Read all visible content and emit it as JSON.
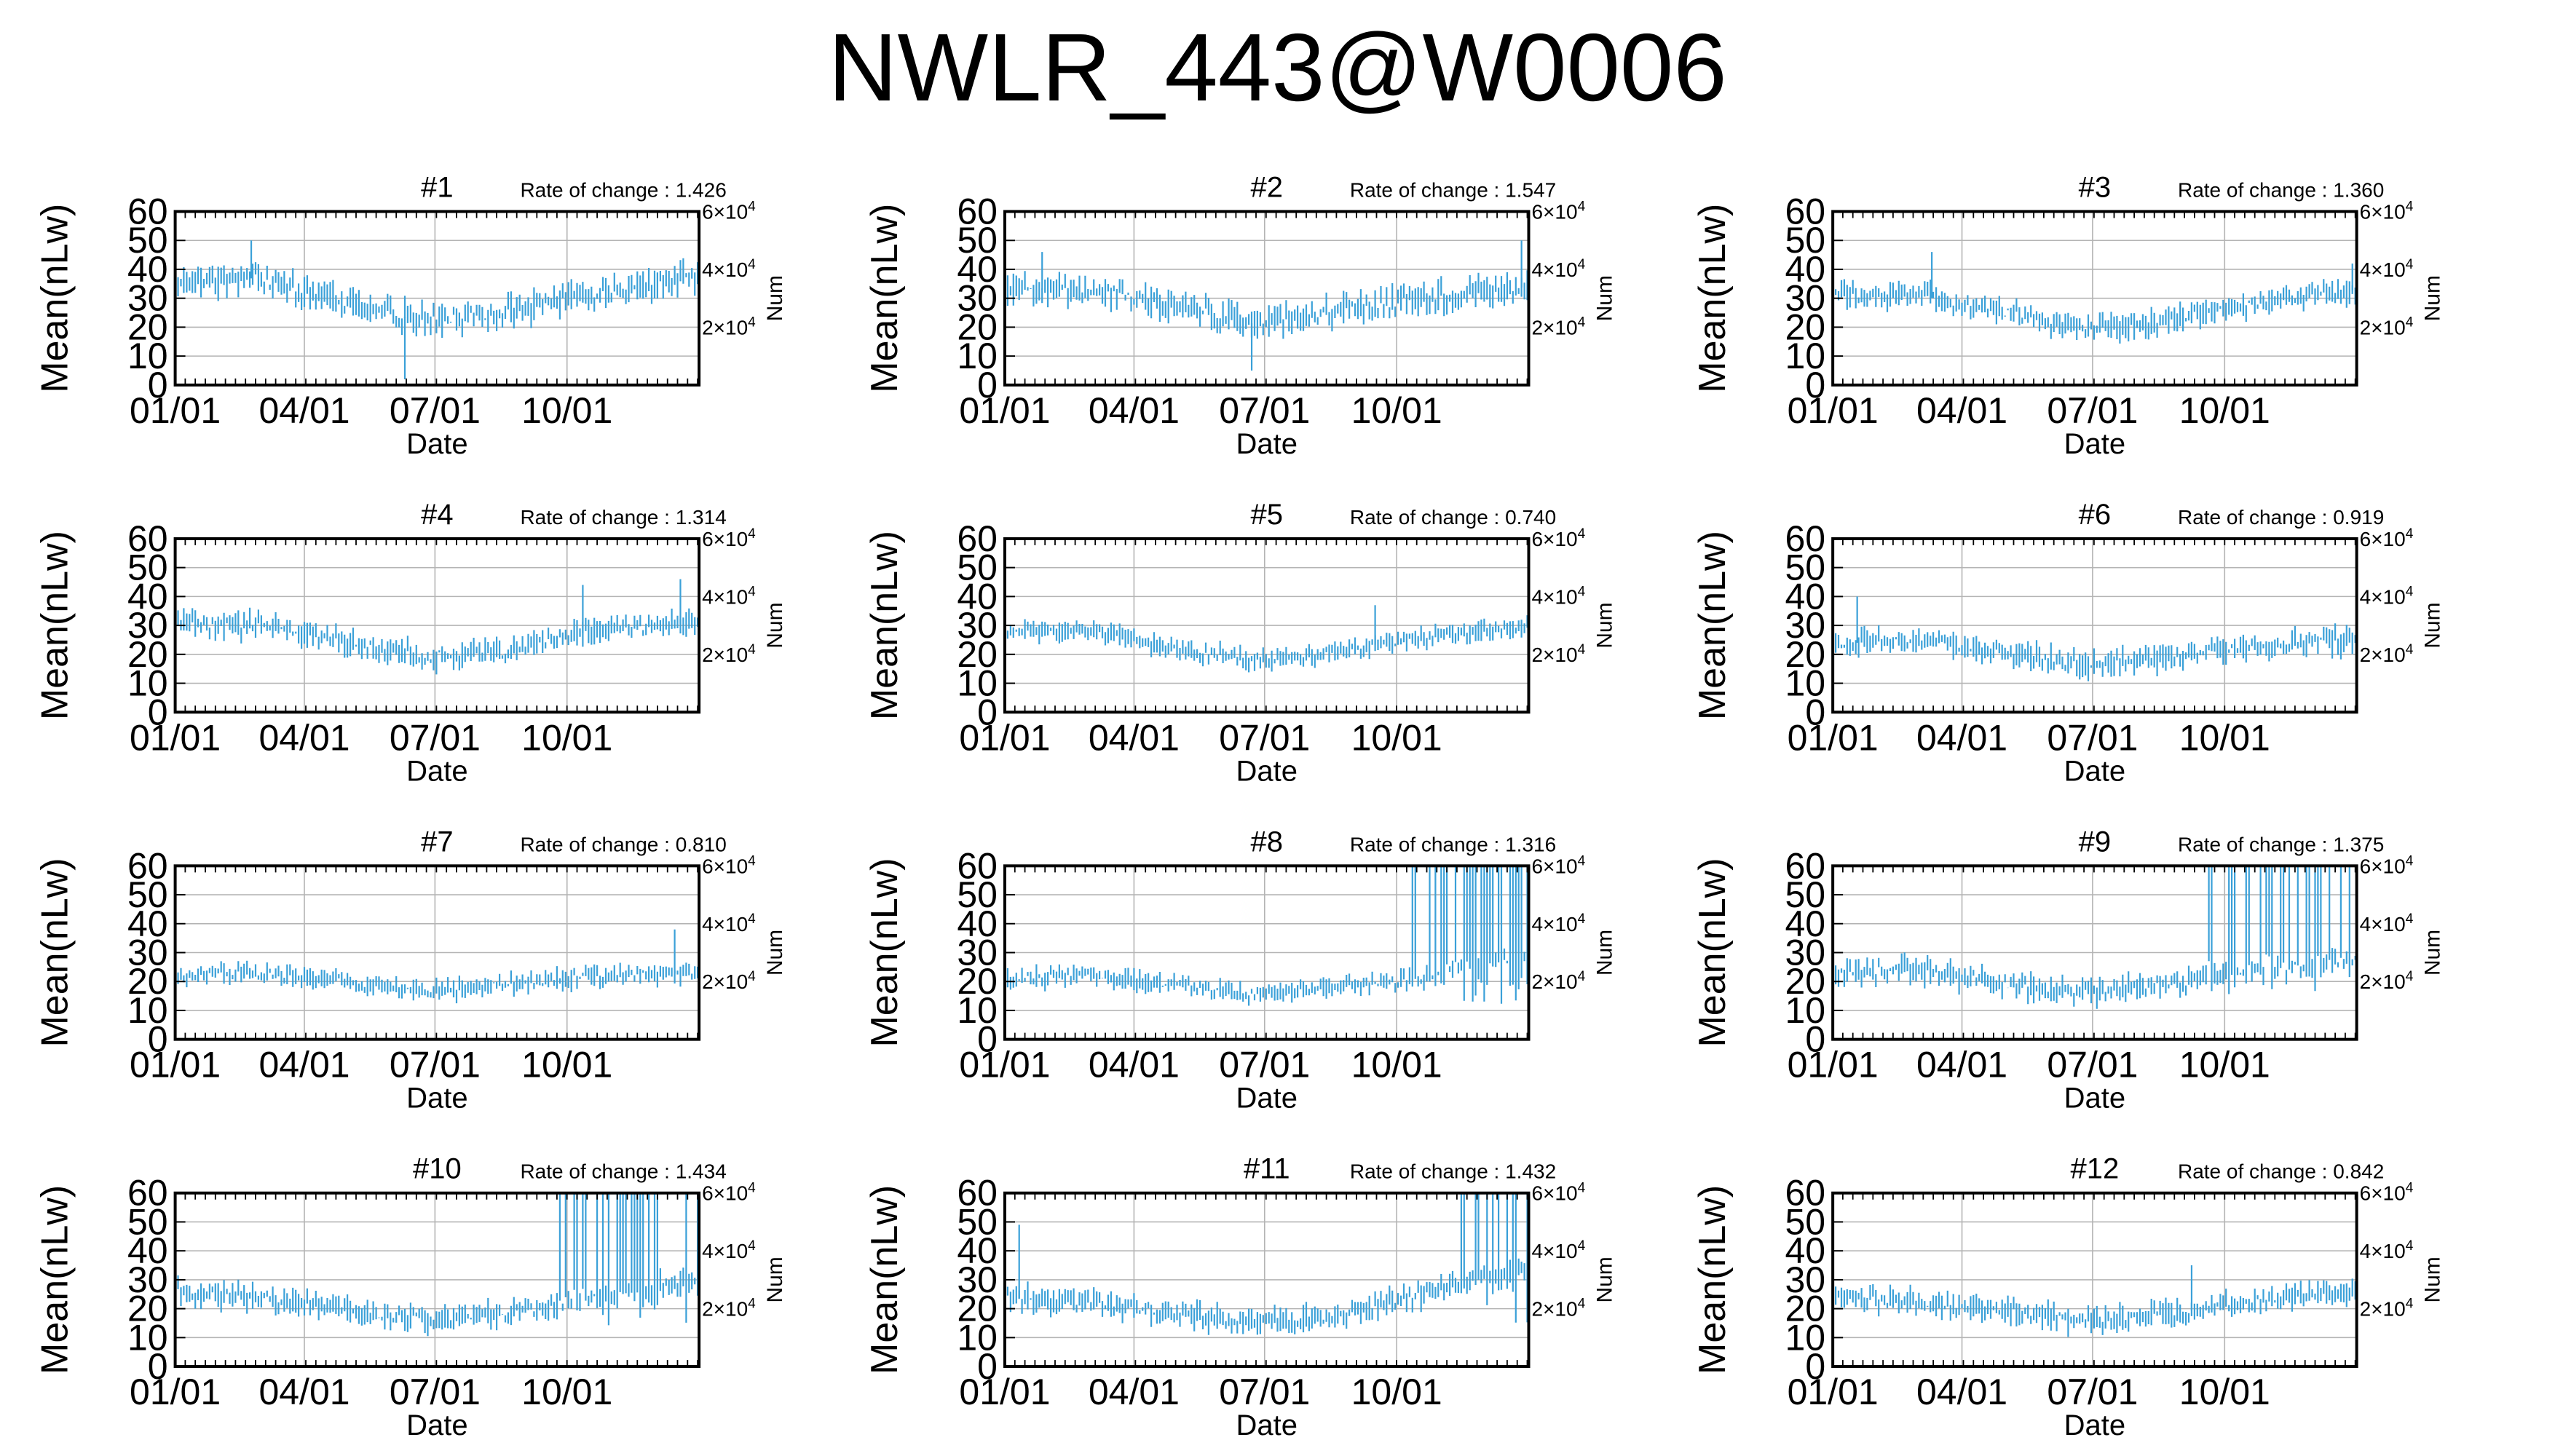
{
  "title": "NWLR_443@W0006",
  "common": {
    "ylabel": "Mean(nLw)",
    "xlabel": "Date",
    "y2label": "Num",
    "rate_label": "Rate of change : ",
    "y_ticks": [
      0,
      10,
      20,
      30,
      40,
      50,
      60
    ],
    "ylim": [
      0,
      60
    ],
    "x_ticks": [
      "01/01",
      "04/01",
      "07/01",
      "10/01"
    ],
    "x_tick_days": [
      0,
      90,
      181,
      273
    ],
    "xlim_days": [
      0,
      365
    ],
    "y2_ticks": [
      {
        "base": "2",
        "exp": "4",
        "value": 20000
      },
      {
        "base": "4",
        "exp": "4",
        "value": 40000
      },
      {
        "base": "6",
        "exp": "4",
        "value": 60000
      }
    ],
    "y2lim": [
      0,
      60000
    ],
    "series_color": "#3aa0d8",
    "grid_color": "#b4b4b4"
  },
  "chart_data": [
    {
      "type": "line",
      "title": "#1",
      "rate": "1.426",
      "profile": [
        [
          0,
          36
        ],
        [
          60,
          37
        ],
        [
          120,
          28
        ],
        [
          175,
          22
        ],
        [
          230,
          25
        ],
        [
          290,
          31
        ],
        [
          365,
          38
        ]
      ],
      "jitter": 6,
      "spikes": [
        [
          53,
          50
        ],
        [
          160,
          2
        ]
      ]
    },
    {
      "type": "line",
      "title": "#2",
      "rate": "1.547",
      "profile": [
        [
          0,
          33
        ],
        [
          60,
          33
        ],
        [
          120,
          27
        ],
        [
          175,
          21
        ],
        [
          230,
          25
        ],
        [
          290,
          30
        ],
        [
          365,
          34
        ]
      ],
      "jitter": 6,
      "spikes": [
        [
          26,
          46
        ],
        [
          360,
          50
        ],
        [
          172,
          5
        ]
      ]
    },
    {
      "type": "line",
      "title": "#3",
      "rate": "1.360",
      "profile": [
        [
          0,
          31
        ],
        [
          60,
          31
        ],
        [
          120,
          25
        ],
        [
          175,
          19
        ],
        [
          230,
          22
        ],
        [
          290,
          28
        ],
        [
          365,
          33
        ]
      ],
      "jitter": 5,
      "spikes": [
        [
          69,
          46
        ],
        [
          362,
          42
        ]
      ]
    },
    {
      "type": "line",
      "title": "#4",
      "rate": "1.314",
      "profile": [
        [
          0,
          30
        ],
        [
          60,
          30
        ],
        [
          120,
          24
        ],
        [
          175,
          19
        ],
        [
          230,
          21
        ],
        [
          290,
          28
        ],
        [
          365,
          31
        ]
      ],
      "jitter": 5,
      "spikes": [
        [
          284,
          44
        ],
        [
          352,
          46
        ]
      ]
    },
    {
      "type": "line",
      "title": "#5",
      "rate": "0.740",
      "profile": [
        [
          0,
          28
        ],
        [
          60,
          28
        ],
        [
          120,
          22
        ],
        [
          175,
          18
        ],
        [
          230,
          21
        ],
        [
          290,
          26
        ],
        [
          365,
          29
        ]
      ],
      "jitter": 4,
      "spikes": [
        [
          258,
          37
        ]
      ]
    },
    {
      "type": "line",
      "title": "#6",
      "rate": "0.919",
      "profile": [
        [
          0,
          24
        ],
        [
          60,
          24
        ],
        [
          120,
          21
        ],
        [
          175,
          16
        ],
        [
          230,
          19
        ],
        [
          290,
          23
        ],
        [
          365,
          25
        ]
      ],
      "jitter": 5,
      "spikes": [
        [
          17,
          40
        ]
      ]
    },
    {
      "type": "line",
      "title": "#7",
      "rate": "0.810",
      "profile": [
        [
          0,
          22
        ],
        [
          60,
          23
        ],
        [
          120,
          20
        ],
        [
          175,
          16
        ],
        [
          230,
          19
        ],
        [
          290,
          22
        ],
        [
          365,
          23
        ]
      ],
      "jitter": 4,
      "spikes": [
        [
          348,
          38
        ]
      ]
    },
    {
      "type": "line",
      "title": "#8",
      "rate": "1.316",
      "profile": [
        [
          0,
          21
        ],
        [
          60,
          22
        ],
        [
          120,
          19
        ],
        [
          175,
          16
        ],
        [
          230,
          18
        ],
        [
          270,
          20
        ],
        [
          365,
          28
        ]
      ],
      "jitter": 4,
      "spikes": [],
      "burst": [
        276,
        365,
        12,
        60
      ]
    },
    {
      "type": "line",
      "title": "#9",
      "rate": "1.375",
      "profile": [
        [
          0,
          23
        ],
        [
          60,
          24
        ],
        [
          120,
          19
        ],
        [
          175,
          16
        ],
        [
          230,
          19
        ],
        [
          265,
          21
        ],
        [
          365,
          28
        ]
      ],
      "jitter": 5,
      "spikes": [],
      "burst": [
        262,
        365,
        15,
        60
      ]
    },
    {
      "type": "line",
      "title": "#10",
      "rate": "1.434",
      "profile": [
        [
          0,
          26
        ],
        [
          60,
          24
        ],
        [
          120,
          19
        ],
        [
          175,
          16
        ],
        [
          230,
          19
        ],
        [
          262,
          21
        ],
        [
          365,
          30
        ]
      ],
      "jitter": 5,
      "spikes": [],
      "burst": [
        263,
        365,
        12,
        60
      ]
    },
    {
      "type": "line",
      "title": "#11",
      "rate": "1.432",
      "profile": [
        [
          0,
          24
        ],
        [
          60,
          22
        ],
        [
          120,
          18
        ],
        [
          175,
          15
        ],
        [
          230,
          17
        ],
        [
          290,
          25
        ],
        [
          365,
          35
        ]
      ],
      "jitter": 5,
      "spikes": [
        [
          10,
          49
        ]
      ],
      "burst": [
        318,
        365,
        15,
        60
      ]
    },
    {
      "type": "line",
      "title": "#12",
      "rate": "0.842",
      "profile": [
        [
          0,
          24
        ],
        [
          60,
          22
        ],
        [
          120,
          19
        ],
        [
          175,
          16
        ],
        [
          230,
          18
        ],
        [
          290,
          22
        ],
        [
          365,
          26
        ]
      ],
      "jitter": 5,
      "spikes": [
        [
          250,
          35
        ]
      ]
    }
  ]
}
